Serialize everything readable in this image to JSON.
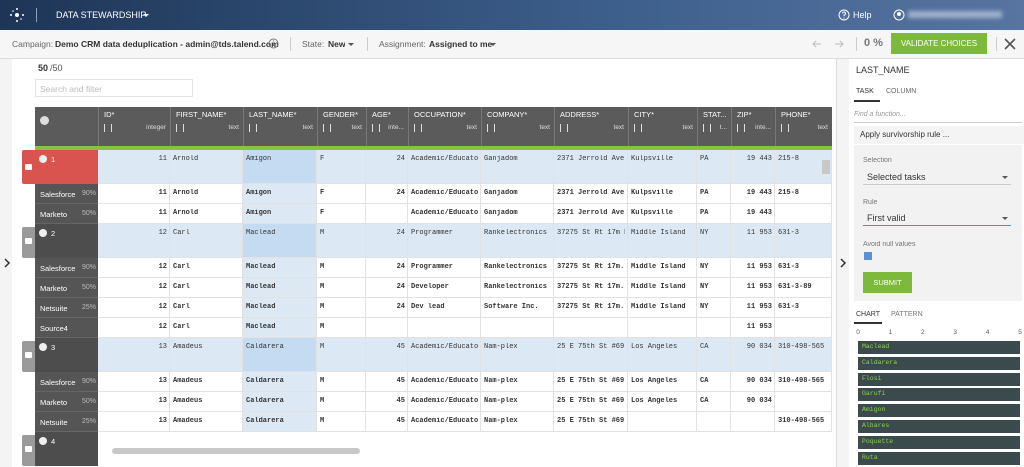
{
  "topbar": {
    "app": "DATA STEWARDSHIP",
    "help": "Help"
  },
  "toolbar": {
    "campaign_label": "Campaign:",
    "campaign": "Demo CRM data deduplication - admin@tds.talend.com",
    "state_label": "State:",
    "state": "New",
    "assignment_label": "Assignment:",
    "assignment": "Assigned to me",
    "progress": "0 %",
    "validate": "VALIDATE CHOICES"
  },
  "grid": {
    "count": "50",
    "total": "/50",
    "search": "Search and filter",
    "columns": [
      {
        "name": "ID*",
        "type": "integer"
      },
      {
        "name": "FIRST_NAME*",
        "type": "text"
      },
      {
        "name": "LAST_NAME*",
        "type": "text"
      },
      {
        "name": "GENDER*",
        "type": "text"
      },
      {
        "name": "AGE*",
        "type": "inte..."
      },
      {
        "name": "OCCUPATION*",
        "type": "text"
      },
      {
        "name": "COMPANY*",
        "type": "text"
      },
      {
        "name": "ADDRESS*",
        "type": "text"
      },
      {
        "name": "CITY*",
        "type": "text"
      },
      {
        "name": "STAT...",
        "type": "t..."
      },
      {
        "name": "ZIP*",
        "type": "inte..."
      },
      {
        "name": "PHONE*",
        "type": "text"
      }
    ],
    "groups": [
      {
        "label": "1",
        "color": "#d9534f",
        "cells": [
          "11",
          "Arnold",
          "Amigon",
          "F",
          "24",
          "Academic/Educator",
          "Ganjadom",
          "2371 Jerrold Ave",
          "Kulpsville",
          "PA",
          "19 443",
          "215-8"
        ],
        "sources": [
          {
            "name": "Salesforce",
            "score": "90%",
            "cells": [
              "11",
              "Arnold",
              "Amigon",
              "F",
              "24",
              "Academic/Educator",
              "Ganjadom",
              "2371 Jerrold Ave",
              "Kulpsville",
              "PA",
              "19 443",
              "215-8"
            ]
          },
          {
            "name": "Marketo",
            "score": "50%",
            "cells": [
              "11",
              "Arnold",
              "Amigon",
              "F",
              null,
              "Academic/Educator",
              "Ganjadom",
              "2371 Jerrold Ave",
              "Kulpsville",
              "PA",
              "19 443",
              null
            ]
          }
        ]
      },
      {
        "label": "2",
        "color": "#4d4d4d",
        "cells": [
          "12",
          "Carl",
          "Maclead",
          "M",
          "24",
          "Programmer",
          "Rankelectronics",
          "37275 St Rt 17m M",
          "Middle Island",
          "NY",
          "11 953",
          "631-3"
        ],
        "sources": [
          {
            "name": "Salesforce",
            "score": "90%",
            "cells": [
              "12",
              "Carl",
              "Maclead",
              "M",
              "24",
              "Programmer",
              "Rankelectronics",
              "37275 St Rt 17m...",
              "Middle Island",
              "NY",
              "11 953",
              "631-3"
            ]
          },
          {
            "name": "Marketo",
            "score": "50%",
            "cells": [
              "12",
              "Carl",
              "Maclead",
              "M",
              "24",
              "Developer",
              "Rankelectronics",
              "37275 St Rt 17m...",
              "Middle Island",
              "NY",
              "11 953",
              "631-3-89"
            ]
          },
          {
            "name": "Netsuite",
            "score": "25%",
            "cells": [
              "12",
              "Carl",
              "Maclead",
              "M",
              "24",
              "Dev lead",
              "Software Inc.",
              "37275 St Rt 17m...",
              "Middle Island",
              "NY",
              "11 953",
              "631-3"
            ]
          },
          {
            "name": "Source4",
            "score": null,
            "cells": [
              "12",
              "Carl",
              "Maclead",
              "M",
              null,
              null,
              null,
              null,
              null,
              null,
              "11 953",
              null
            ]
          }
        ]
      },
      {
        "label": "3",
        "color": "#4d4d4d",
        "cells": [
          "13",
          "Amadeus",
          "Caldarera",
          "M",
          "45",
          "Academic/Educator",
          "Nam-plex",
          "25 E 75th St #69",
          "Los Angeles",
          "CA",
          "90 034",
          "310-498-565"
        ],
        "sources": [
          {
            "name": "Salesforce",
            "score": "90%",
            "cells": [
              "13",
              "Amadeus",
              "Caldarera",
              "M",
              "45",
              "Academic/Educator",
              "Nam-plex",
              "25 E 75th St #69",
              "Los Angeles",
              "CA",
              "90 034",
              "310-498-565"
            ]
          },
          {
            "name": "Marketo",
            "score": "50%",
            "cells": [
              "13",
              "Amadeus",
              "Caldarera",
              "M",
              "45",
              "Academic/Educator",
              "Nam-plex",
              "25 E 75th St #69",
              "Los Angeles",
              "CA",
              "90 034",
              null
            ]
          },
          {
            "name": "Netsuite",
            "score": "25%",
            "cells": [
              "13",
              "Amadeus",
              "Caldarera",
              "M",
              "45",
              "Academic/Educator",
              "Nam-plex",
              "25 E 75th St #69",
              null,
              null,
              null,
              "310-498-565"
            ]
          }
        ]
      },
      {
        "label": "4",
        "color": "#4d4d4d"
      }
    ]
  },
  "panel": {
    "title": "LAST_NAME",
    "tabs": [
      "TASK",
      "COLUMN"
    ],
    "find": "Find a function...",
    "rule_header": "Apply survivorship rule ...",
    "selection_label": "Selection",
    "selection": "Selected tasks",
    "rule_label": "Rule",
    "rule": "First valid",
    "avoid": "Avoid null values",
    "submit": "SUBMIT",
    "chart_tabs": [
      "CHART",
      "PATTERN"
    ],
    "chart": {
      "type": "bar",
      "categories": [
        "Maclead",
        "Caldarera",
        "Flosi",
        "Garufi",
        "Amigon",
        "Albares",
        "Poquette",
        "Ruta"
      ],
      "values": [
        5,
        5,
        5,
        5,
        5,
        5,
        5,
        5
      ],
      "xlim": [
        0,
        5
      ],
      "xticks": [
        0,
        1,
        2,
        3,
        4,
        5
      ],
      "color": "#3b4a4d",
      "label_color": "#8fd14f"
    }
  }
}
